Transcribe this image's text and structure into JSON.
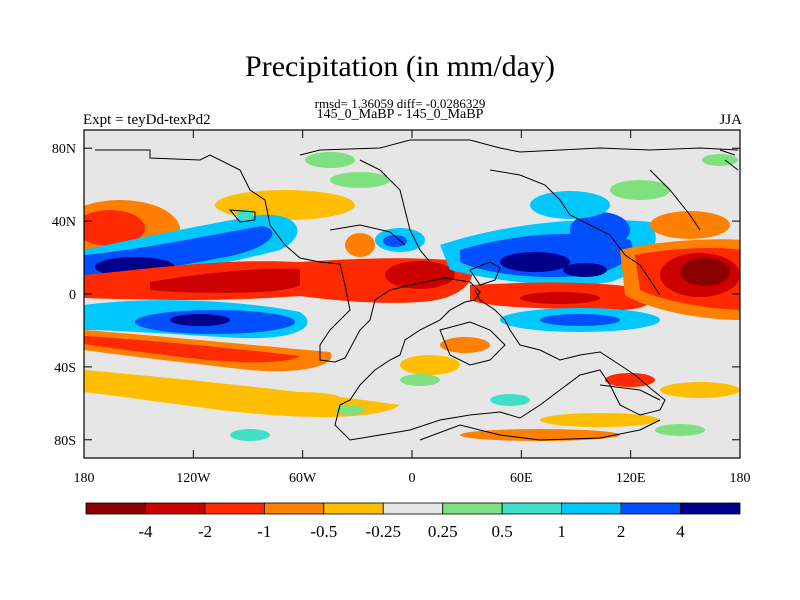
{
  "header": {
    "title": "Precipitation (in mm/day)",
    "stats": "rmsd= 1.36059 diff= -0.0286329",
    "cases": "145_0_MaBP - 145_0_MaBP",
    "left_string": "Expt = teyDd-texPd2",
    "right_string": "JJA"
  },
  "axes": {
    "x_ticks": [
      {
        "lon": -180,
        "label": "180"
      },
      {
        "lon": -120,
        "label": "120W"
      },
      {
        "lon": -60,
        "label": "60W"
      },
      {
        "lon": 0,
        "label": "0"
      },
      {
        "lon": 60,
        "label": "60E"
      },
      {
        "lon": 120,
        "label": "120E"
      },
      {
        "lon": 180,
        "label": "180"
      }
    ],
    "y_ticks": [
      {
        "lat": 80,
        "label": "80N"
      },
      {
        "lat": 40,
        "label": "40N"
      },
      {
        "lat": 0,
        "label": "0"
      },
      {
        "lat": -40,
        "label": "40S"
      },
      {
        "lat": -80,
        "label": "80S"
      }
    ]
  },
  "colorbar": {
    "colors": [
      "#8b0000",
      "#cd0000",
      "#ff2a00",
      "#ff7f00",
      "#ffbf00",
      "#e6e6e6",
      "#7fe07f",
      "#40e0c8",
      "#00c8ff",
      "#0050ff",
      "#00008b"
    ],
    "labels": [
      "-4",
      "-2",
      "-1",
      "-0.5",
      "-0.25",
      "0.25",
      "0.5",
      "1",
      "2",
      "4"
    ]
  },
  "colors": {
    "land_neutral": "#e6e6e6",
    "coast": "#000000"
  }
}
